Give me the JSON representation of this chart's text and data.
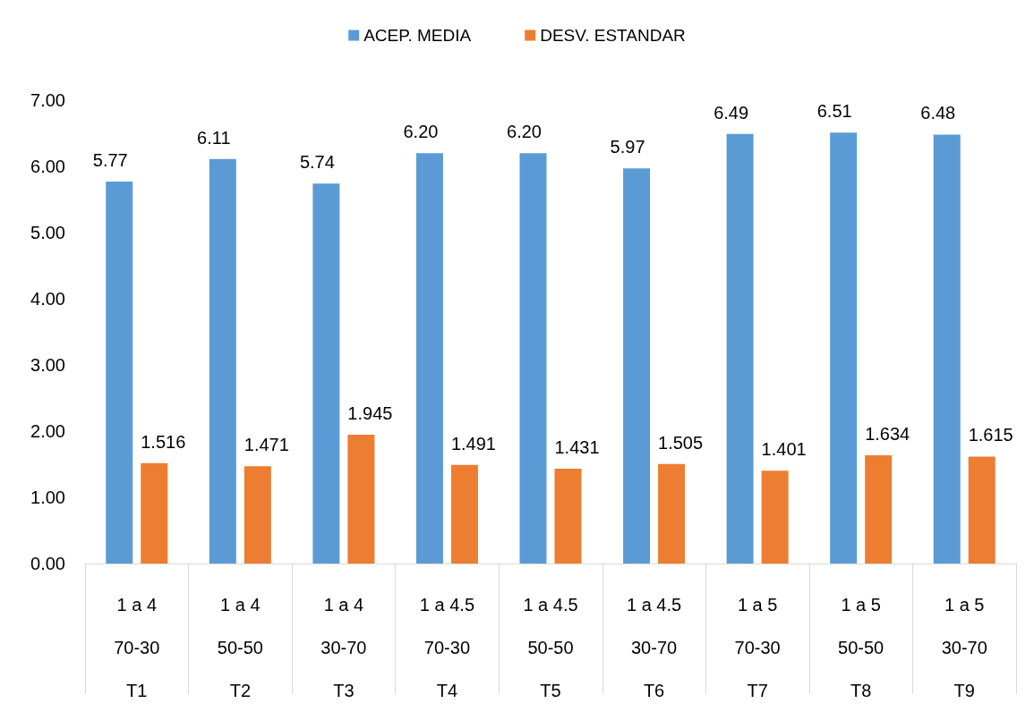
{
  "chart_data": {
    "type": "bar",
    "categories": [
      "1 a 4\n70-30\nT1",
      "1 a 4\n50-50\nT2",
      "1 a 4\n30-70\nT3",
      "1 a 4.5\n70-30\nT4",
      "1 a 4.5\n50-50\nT5",
      "1 a 4.5\n30-70\nT6",
      "1 a 5\n70-30\nT7",
      "1 a 5\n50-50\nT8",
      "1 a 5\n30-70\nT9"
    ],
    "series": [
      {
        "name": "ACEP. MEDIA",
        "color": "#5b9bd5",
        "values": [
          5.77,
          6.11,
          5.74,
          6.2,
          6.2,
          5.97,
          6.49,
          6.51,
          6.48
        ],
        "value_labels": [
          "5.77",
          "6.11",
          "5.74",
          "6.20",
          "6.20",
          "5.97",
          "6.49",
          "6.51",
          "6.48"
        ]
      },
      {
        "name": "DESV. ESTANDAR",
        "color": "#ed7d31",
        "values": [
          1.516,
          1.471,
          1.945,
          1.491,
          1.431,
          1.505,
          1.401,
          1.634,
          1.615
        ],
        "value_labels": [
          "1.516",
          "1.471",
          "1.945",
          "1.491",
          "1.431",
          "1.505",
          "1.401",
          "1.634",
          "1.615"
        ]
      }
    ],
    "ylim": [
      0,
      7
    ],
    "yticks": [
      {
        "value": 0,
        "label": "0.00"
      },
      {
        "value": 1,
        "label": "1.00"
      },
      {
        "value": 2,
        "label": "2.00"
      },
      {
        "value": 3,
        "label": "3.00"
      },
      {
        "value": 4,
        "label": "4.00"
      },
      {
        "value": 5,
        "label": "5.00"
      },
      {
        "value": 6,
        "label": "6.00"
      },
      {
        "value": 7,
        "label": "7.00"
      }
    ],
    "legend": "top",
    "grid": false
  }
}
